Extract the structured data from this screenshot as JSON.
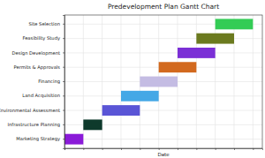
{
  "chart_data": {
    "type": "gantt",
    "title": "Predevelopment Plan Gantt Chart",
    "x_label": "Date",
    "orientation": "horizontal",
    "categories": [
      "Site Selection",
      "Feasibility Study",
      "Design Development",
      "Permits & Approvals",
      "Financing",
      "Land Acquisition",
      "Environmental Assessment",
      "Infrastructure Planning",
      "Marketing Strategy"
    ],
    "start": [
      8,
      7,
      6,
      5,
      4,
      3,
      2,
      1,
      0
    ],
    "end": [
      10,
      9,
      8,
      7,
      6,
      5,
      4,
      2,
      1
    ],
    "colors": [
      "#33cc55",
      "#6b7a1f",
      "#7b2fd6",
      "#d2691e",
      "#c4bce3",
      "#45a8e6",
      "#5a55d6",
      "#0e3a2c",
      "#8a1ad8"
    ],
    "xlim": [
      0,
      10.5
    ],
    "xticks": [
      0,
      1,
      2,
      3,
      4,
      5,
      6,
      7,
      8,
      9,
      10
    ],
    "grid": true,
    "tick_labels": "y"
  }
}
